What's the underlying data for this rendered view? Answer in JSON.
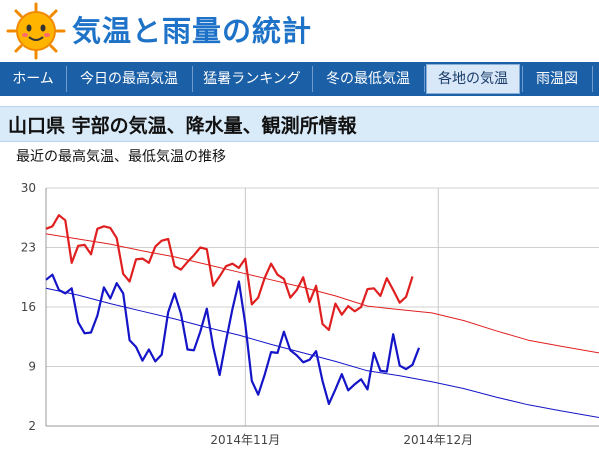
{
  "header": {
    "site_title": "気温と雨量の統計",
    "logo_icon": "sun-face-icon"
  },
  "nav": {
    "tabs": [
      {
        "label": "ホーム",
        "active": false
      },
      {
        "label": "今日の最高気温",
        "active": false
      },
      {
        "label": "猛暑ランキング",
        "active": false
      },
      {
        "label": "冬の最低気温",
        "active": false
      },
      {
        "label": "各地の気温",
        "active": true
      },
      {
        "label": "雨温図",
        "active": false
      }
    ]
  },
  "page": {
    "title": "山口県 宇部の気温、降水量、観測所情報",
    "chart_heading": "最近の最高気温、最低気温の推移"
  },
  "colors": {
    "max_temp": "#e02020",
    "min_temp": "#1515c8",
    "nav_bg": "#1b5fa6",
    "title_bg": "#d9eaf8"
  },
  "chart_data": {
    "type": "line",
    "title": "",
    "xlabel": "",
    "ylabel": "",
    "ylim": [
      2,
      30
    ],
    "y_ticks": [
      "2",
      "9",
      "16",
      "23",
      "30"
    ],
    "x_ticks": [
      {
        "label": "2014年11月",
        "index": 31
      },
      {
        "label": "2014年12月",
        "index": 61
      }
    ],
    "x_range": [
      0,
      86
    ],
    "grid": true,
    "series": [
      {
        "key": "max_recent",
        "color": "#e02020",
        "thick": true,
        "values": [
          25.2,
          25.5,
          26.8,
          26.2,
          21.2,
          23.2,
          23.3,
          22.2,
          25.2,
          25.5,
          25.3,
          24.1,
          19.9,
          19.0,
          21.6,
          21.7,
          21.2,
          23.1,
          23.8,
          24.0,
          20.8,
          20.4,
          21.3,
          22.1,
          23.0,
          22.8,
          18.5,
          19.6,
          20.8,
          21.1,
          20.6,
          21.7,
          16.3,
          17.1,
          19.4,
          21.1,
          19.8,
          19.3,
          17.1,
          18.0,
          19.5,
          16.6,
          18.5,
          14.0,
          13.3,
          16.4,
          15.1,
          16.1,
          15.5,
          16.0,
          18.1,
          18.2,
          17.3,
          19.4,
          18.0,
          16.5,
          17.2,
          19.6
        ]
      },
      {
        "key": "min_recent",
        "color": "#1515c8",
        "thick": true,
        "values": [
          19.2,
          19.8,
          18.0,
          17.6,
          18.2,
          14.2,
          12.9,
          13.0,
          15.0,
          18.3,
          17.0,
          18.8,
          17.6,
          12.1,
          11.3,
          9.7,
          11.0,
          9.6,
          10.4,
          15.4,
          17.6,
          15.2,
          11.0,
          10.9,
          13.1,
          15.8,
          11.3,
          8.0,
          12.0,
          15.8,
          19.0,
          14.0,
          7.3,
          5.7,
          8.0,
          10.7,
          10.6,
          13.1,
          10.9,
          10.3,
          9.5,
          9.8,
          10.8,
          7.3,
          4.6,
          6.3,
          8.1,
          6.2,
          6.9,
          7.5,
          6.3,
          10.6,
          8.5,
          8.4,
          12.8,
          9.1,
          8.7,
          9.2,
          11.2
        ]
      },
      {
        "key": "max_normal",
        "color": "#e02020",
        "thick": false,
        "x": [
          0,
          5,
          10,
          15,
          20,
          25,
          30,
          35,
          40,
          45,
          50,
          55,
          60,
          65,
          70,
          75,
          80,
          86
        ],
        "values": [
          24.6,
          24.0,
          23.4,
          22.6,
          21.9,
          21.0,
          20.1,
          19.2,
          18.3,
          17.3,
          16.1,
          15.7,
          15.3,
          14.4,
          13.2,
          12.1,
          11.4,
          10.6
        ]
      },
      {
        "key": "min_normal",
        "color": "#1515c8",
        "thick": false,
        "x": [
          0,
          5,
          10,
          15,
          20,
          25,
          30,
          35,
          40,
          45,
          50,
          55,
          60,
          65,
          70,
          75,
          80,
          86
        ],
        "values": [
          18.2,
          17.4,
          16.4,
          15.5,
          14.6,
          13.6,
          12.7,
          11.6,
          10.6,
          9.6,
          8.5,
          7.9,
          7.2,
          6.4,
          5.4,
          4.5,
          3.8,
          3.0
        ]
      }
    ]
  }
}
